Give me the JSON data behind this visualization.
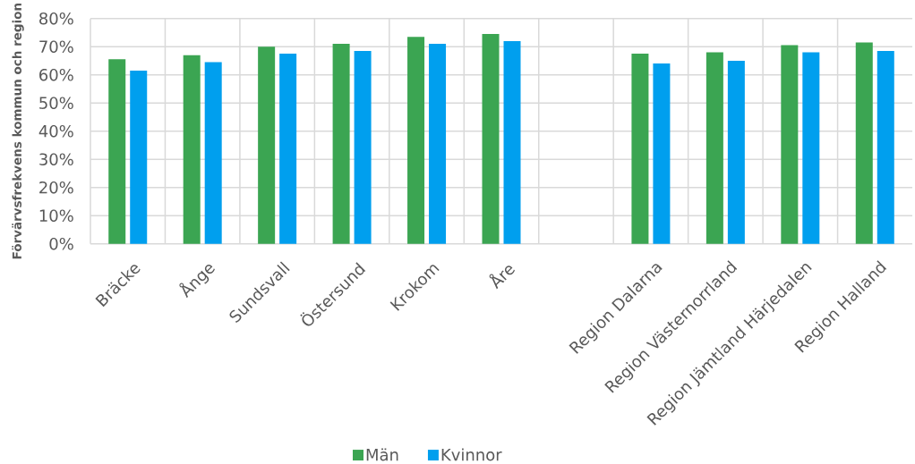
{
  "chart_data": {
    "type": "bar",
    "ylabel": "Förvärvsfrekvens kommun och region",
    "categories": [
      "Bräcke",
      "Ånge",
      "Sundsvall",
      "Östersund",
      "Krokom",
      "Åre",
      null,
      "Region Dalarna",
      "Region Västernorrland",
      "Region Jämtland Härjedalen",
      "Region Halland"
    ],
    "series": [
      {
        "name": "Män",
        "color": "#3ba552",
        "values": [
          65.5,
          67,
          70,
          71,
          73.5,
          74.5,
          null,
          67.5,
          68,
          70.5,
          71.5
        ]
      },
      {
        "name": "Kvinnor",
        "color": "#009fee",
        "values": [
          61.5,
          64.5,
          67.5,
          68.5,
          71,
          72,
          null,
          64,
          65,
          68,
          68.5
        ]
      }
    ],
    "ylim": [
      0,
      80
    ],
    "yticks": [
      {
        "value": 0,
        "label": "0%"
      },
      {
        "value": 10,
        "label": "10%"
      },
      {
        "value": 20,
        "label": "20%"
      },
      {
        "value": 30,
        "label": "30%"
      },
      {
        "value": 40,
        "label": "40%"
      },
      {
        "value": 50,
        "label": "50%"
      },
      {
        "value": 60,
        "label": "60%"
      },
      {
        "value": 70,
        "label": "70%"
      },
      {
        "value": 80,
        "label": "80%"
      }
    ],
    "grid": true,
    "legend": "bottom"
  }
}
